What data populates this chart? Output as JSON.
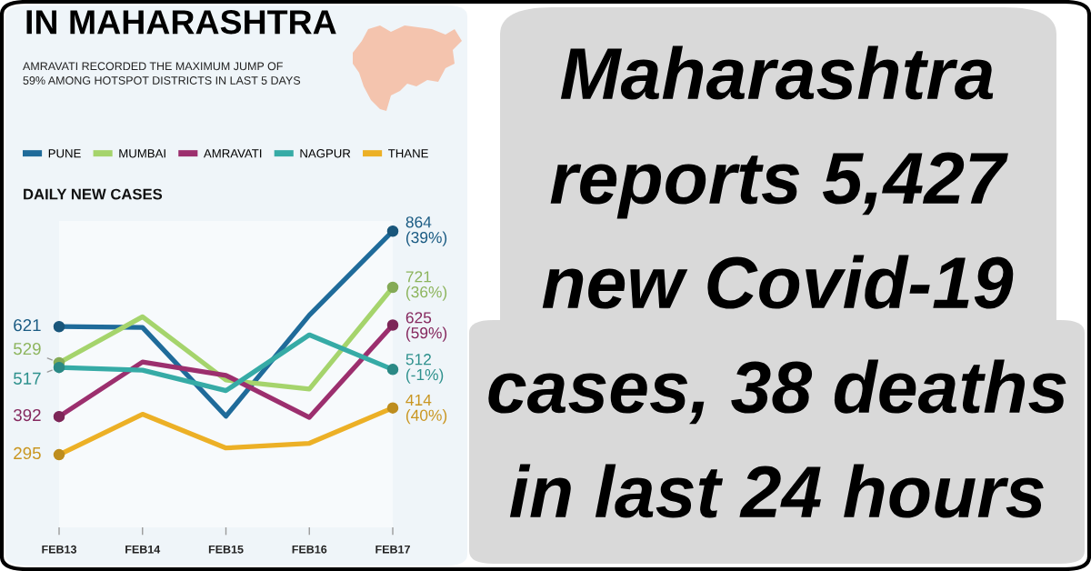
{
  "chart_data": {
    "type": "line",
    "title": "IN MAHARASHTRA",
    "subtitle": "AMRAVATI RECORDED THE MAXIMUM JUMP OF\n59% AMONG HOTSPOT DISTRICTS IN LAST 5 DAYS",
    "ylabel": "DAILY NEW CASES",
    "annotations": [
      "Maharashtra\nreports 5,427\nnew Covid-19\ncases, 38 deaths\nin last 24 hours"
    ],
    "categories": [
      "FEB13",
      "FEB14",
      "FEB15",
      "FEB16",
      "FEB17"
    ],
    "series": [
      {
        "name": "PUNE",
        "color": "#1f6b9a",
        "values": [
          621,
          619,
          393,
          650,
          864
        ],
        "value_labels": [
          "621",
          null,
          null,
          null,
          "864\n(39%)"
        ]
      },
      {
        "name": "MUMBAI",
        "color": "#a5d46c",
        "values": [
          529,
          646,
          485,
          462,
          721
        ],
        "value_labels": [
          "529",
          null,
          null,
          null,
          "721\n(36%)"
        ]
      },
      {
        "name": "AMRAVATI",
        "color": "#9c2f6e",
        "values": [
          392,
          531,
          497,
          390,
          625
        ],
        "value_labels": [
          "392",
          null,
          null,
          null,
          "625\n(59%)"
        ]
      },
      {
        "name": "NAGPUR",
        "color": "#36aba6",
        "values": [
          517,
          510,
          458,
          600,
          512
        ],
        "value_labels": [
          "517",
          null,
          null,
          null,
          "512\n(-1%)"
        ]
      },
      {
        "name": "THANE",
        "color": "#ecb026",
        "values": [
          295,
          398,
          312,
          324,
          414
        ],
        "value_labels": [
          "295",
          null,
          null,
          null,
          "414\n(40%)"
        ]
      }
    ],
    "ylim": [
      110,
      890
    ],
    "tick_labels": "x",
    "grid": false,
    "legend": "top",
    "line_style": "solid"
  }
}
